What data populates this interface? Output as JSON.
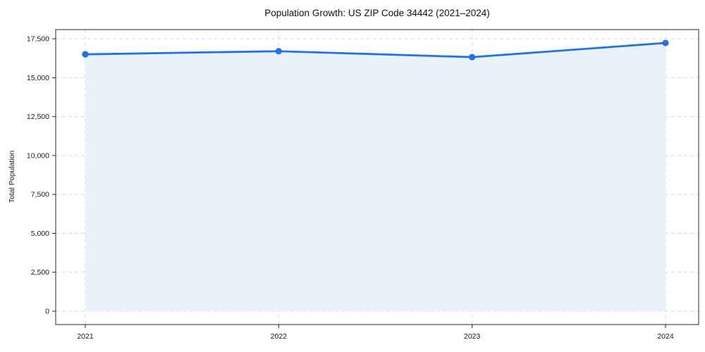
{
  "page": {
    "background": "#ffffff"
  },
  "chart_data": {
    "type": "area",
    "title": "Population Growth: US ZIP Code 34442 (2021–2024)",
    "xlabel": "",
    "ylabel": "Total Population",
    "categories": [
      "2021",
      "2022",
      "2023",
      "2024"
    ],
    "series": [
      {
        "name": "Total Population",
        "values": [
          16500,
          16700,
          16320,
          17230
        ]
      }
    ],
    "y_ticks": [
      0,
      2500,
      5000,
      7500,
      10000,
      12500,
      15000,
      17500
    ],
    "y_tick_labels": [
      "0",
      "2,500",
      "5,000",
      "7,500",
      "10,000",
      "12,500",
      "15,000",
      "17,500"
    ],
    "ylim": [
      -860,
      18090
    ],
    "grid": true,
    "grid_style": "dashed",
    "legend_position": "none",
    "colors": {
      "line": "#2172e5",
      "marker": "#2172e5",
      "fill": "#e9f1fb",
      "grid": "#d9d9d9",
      "spine": "#262626",
      "tick_text": "#1a1a1a",
      "title_text": "#111111"
    }
  }
}
